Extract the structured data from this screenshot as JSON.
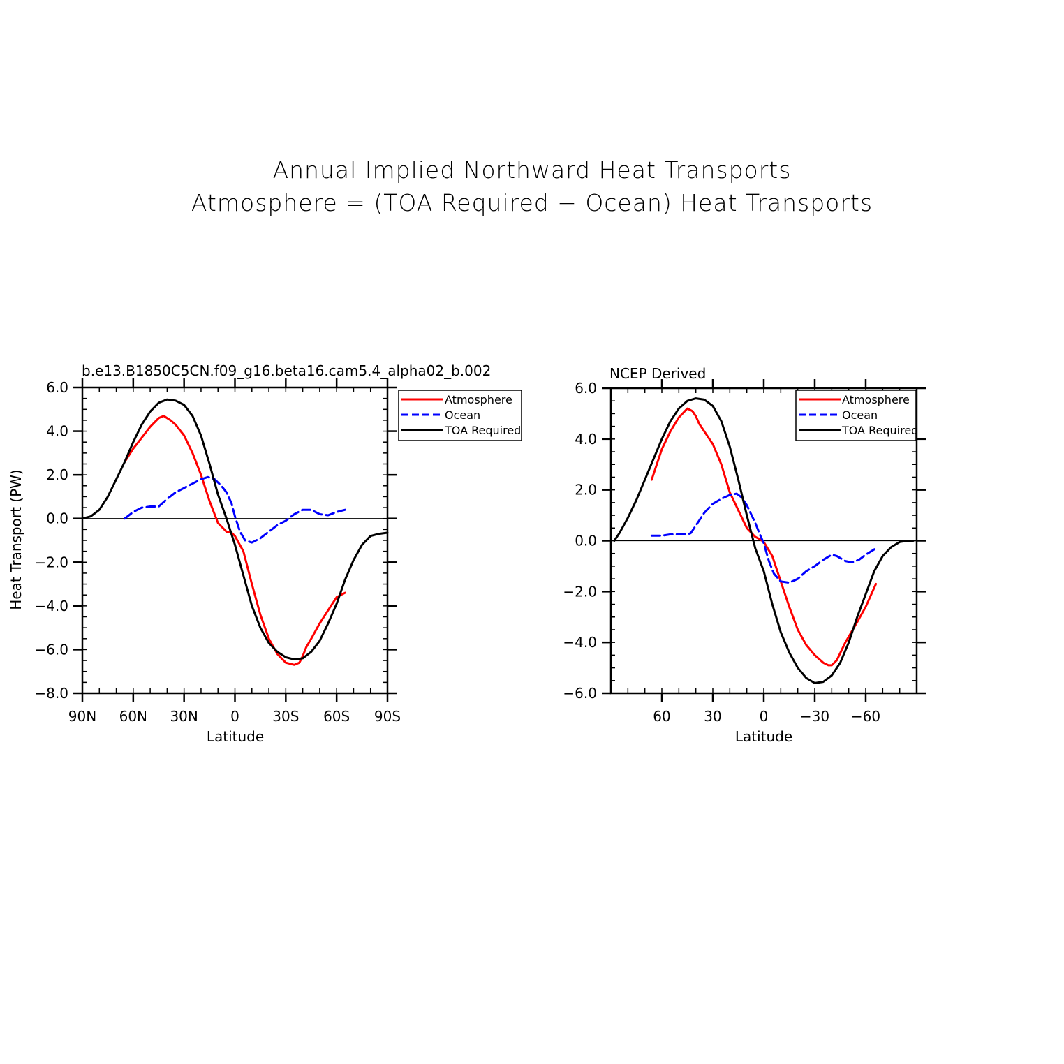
{
  "title_lines": [
    "Annual Implied Northward Heat Transports",
    "Atmosphere = (TOA Required − Ocean) Heat Transports"
  ],
  "chart_data": [
    {
      "type": "line",
      "title": "b.e13.B1850C5CN.f09_g16.beta16.cam5.4_alpha02_b.002",
      "xlabel": "Latitude",
      "ylabel": "Heat Transport (PW)",
      "xlim": [
        90,
        -90
      ],
      "ylim": [
        -8,
        6
      ],
      "x_ticks": [
        90,
        60,
        30,
        0,
        -30,
        -60,
        -90
      ],
      "x_tick_labels": [
        "90N",
        "60N",
        "30N",
        "0",
        "30S",
        "60S",
        "90S"
      ],
      "y_ticks": [
        6,
        4,
        2,
        0,
        -2,
        -4,
        -6,
        -8
      ],
      "y_tick_labels": [
        "6.0",
        "4.0",
        "2.0",
        "0.0",
        "−2.0",
        "−4.0",
        "−6.0",
        "−8.0"
      ],
      "zero_line": true,
      "legend_position": "top-right-outside",
      "series": [
        {
          "name": "Atmosphere",
          "color": "#ff0000",
          "dash": "solid",
          "x": [
            65,
            60,
            55,
            50,
            45,
            42,
            38,
            35,
            30,
            25,
            20,
            15,
            10,
            5,
            2,
            0,
            -5,
            -10,
            -15,
            -20,
            -25,
            -30,
            -35,
            -38,
            -40,
            -42,
            -45,
            -50,
            -55,
            -60,
            -65
          ],
          "y": [
            2.6,
            3.2,
            3.7,
            4.2,
            4.6,
            4.7,
            4.5,
            4.3,
            3.8,
            3.0,
            2.0,
            0.8,
            -0.2,
            -0.6,
            -0.65,
            -0.8,
            -1.5,
            -3.0,
            -4.4,
            -5.5,
            -6.2,
            -6.6,
            -6.7,
            -6.6,
            -6.3,
            -5.9,
            -5.5,
            -4.8,
            -4.2,
            -3.6,
            -3.4
          ]
        },
        {
          "name": "Ocean",
          "color": "#0000ff",
          "dash": "dashed",
          "x": [
            65,
            60,
            55,
            50,
            45,
            40,
            35,
            30,
            25,
            20,
            16,
            12,
            8,
            5,
            2,
            0,
            -3,
            -6,
            -10,
            -15,
            -20,
            -25,
            -30,
            -35,
            -40,
            -45,
            -50,
            -55,
            -60,
            -65
          ],
          "y": [
            0.0,
            0.3,
            0.5,
            0.55,
            0.55,
            0.9,
            1.2,
            1.4,
            1.6,
            1.8,
            1.9,
            1.8,
            1.5,
            1.2,
            0.7,
            0.1,
            -0.6,
            -1.0,
            -1.1,
            -0.9,
            -0.6,
            -0.3,
            -0.1,
            0.2,
            0.4,
            0.4,
            0.2,
            0.15,
            0.3,
            0.4
          ]
        },
        {
          "name": "TOA Required",
          "color": "#000000",
          "dash": "solid",
          "x": [
            90,
            85,
            80,
            75,
            70,
            65,
            60,
            55,
            50,
            45,
            40,
            35,
            30,
            25,
            20,
            15,
            10,
            5,
            0,
            -5,
            -10,
            -15,
            -20,
            -25,
            -30,
            -35,
            -40,
            -45,
            -50,
            -55,
            -60,
            -65,
            -70,
            -75,
            -80,
            -85,
            -90
          ],
          "y": [
            0.0,
            0.1,
            0.4,
            1.0,
            1.8,
            2.6,
            3.5,
            4.3,
            4.9,
            5.3,
            5.45,
            5.4,
            5.2,
            4.7,
            3.8,
            2.5,
            1.1,
            0.0,
            -1.2,
            -2.6,
            -4.0,
            -5.0,
            -5.7,
            -6.1,
            -6.35,
            -6.45,
            -6.4,
            -6.1,
            -5.6,
            -4.8,
            -3.9,
            -2.8,
            -1.9,
            -1.2,
            -0.8,
            -0.7,
            -0.65
          ]
        }
      ]
    },
    {
      "type": "line",
      "title": "NCEP Derived",
      "xlabel": "Latitude",
      "ylabel": "",
      "xlim": [
        90,
        -90
      ],
      "ylim": [
        -6,
        6
      ],
      "x_ticks": [
        60,
        30,
        0,
        -30,
        -60
      ],
      "x_tick_labels": [
        "60",
        "30",
        "0",
        "−30",
        "−60"
      ],
      "y_ticks": [
        6,
        4,
        2,
        0,
        -2,
        -4,
        -6
      ],
      "y_tick_labels": [
        "6.0",
        "4.0",
        "2.0",
        "0.0",
        "−2.0",
        "−4.0",
        "−6.0"
      ],
      "zero_line": true,
      "legend_position": "top-right",
      "series": [
        {
          "name": "Atmosphere",
          "color": "#ff0000",
          "dash": "solid",
          "x": [
            66,
            63,
            60,
            55,
            50,
            45,
            42,
            40,
            38,
            35,
            30,
            25,
            20,
            15,
            10,
            5,
            2,
            0,
            -5,
            -10,
            -15,
            -20,
            -25,
            -30,
            -35,
            -38,
            -40,
            -43,
            -48,
            -55,
            -60,
            -66
          ],
          "y": [
            2.4,
            3.0,
            3.6,
            4.3,
            4.85,
            5.2,
            5.1,
            4.9,
            4.6,
            4.3,
            3.8,
            3.0,
            1.9,
            1.2,
            0.5,
            0.15,
            0.05,
            -0.05,
            -0.6,
            -1.6,
            -2.6,
            -3.5,
            -4.1,
            -4.5,
            -4.8,
            -4.9,
            -4.9,
            -4.7,
            -4.0,
            -3.2,
            -2.6,
            -1.7
          ]
        },
        {
          "name": "Ocean",
          "color": "#0000ff",
          "dash": "dashed",
          "x": [
            66,
            60,
            55,
            50,
            45,
            43,
            40,
            35,
            30,
            25,
            20,
            16,
            13,
            10,
            5,
            2,
            0,
            -3,
            -6,
            -10,
            -15,
            -20,
            -25,
            -30,
            -35,
            -40,
            -43,
            -48,
            -52,
            -56,
            -60,
            -66
          ],
          "y": [
            0.2,
            0.2,
            0.25,
            0.25,
            0.25,
            0.3,
            0.6,
            1.1,
            1.45,
            1.65,
            1.8,
            1.85,
            1.7,
            1.4,
            0.7,
            0.2,
            -0.1,
            -0.8,
            -1.3,
            -1.6,
            -1.65,
            -1.5,
            -1.2,
            -1.0,
            -0.75,
            -0.55,
            -0.6,
            -0.8,
            -0.85,
            -0.75,
            -0.55,
            -0.3
          ]
        },
        {
          "name": "TOA Required",
          "color": "#000000",
          "dash": "solid",
          "x": [
            88,
            85,
            80,
            75,
            70,
            65,
            60,
            55,
            50,
            45,
            40,
            35,
            30,
            25,
            20,
            15,
            10,
            5,
            0,
            -5,
            -10,
            -15,
            -20,
            -25,
            -30,
            -35,
            -40,
            -45,
            -50,
            -55,
            -60,
            -65,
            -70,
            -75,
            -80,
            -85,
            -88
          ],
          "y": [
            0.0,
            0.3,
            0.9,
            1.6,
            2.4,
            3.2,
            4.0,
            4.7,
            5.2,
            5.5,
            5.6,
            5.55,
            5.3,
            4.7,
            3.7,
            2.4,
            1.0,
            -0.3,
            -1.2,
            -2.5,
            -3.6,
            -4.4,
            -5.0,
            -5.4,
            -5.6,
            -5.55,
            -5.3,
            -4.8,
            -4.0,
            -3.0,
            -2.1,
            -1.2,
            -0.6,
            -0.25,
            -0.05,
            0.0,
            0.0
          ]
        }
      ]
    }
  ]
}
